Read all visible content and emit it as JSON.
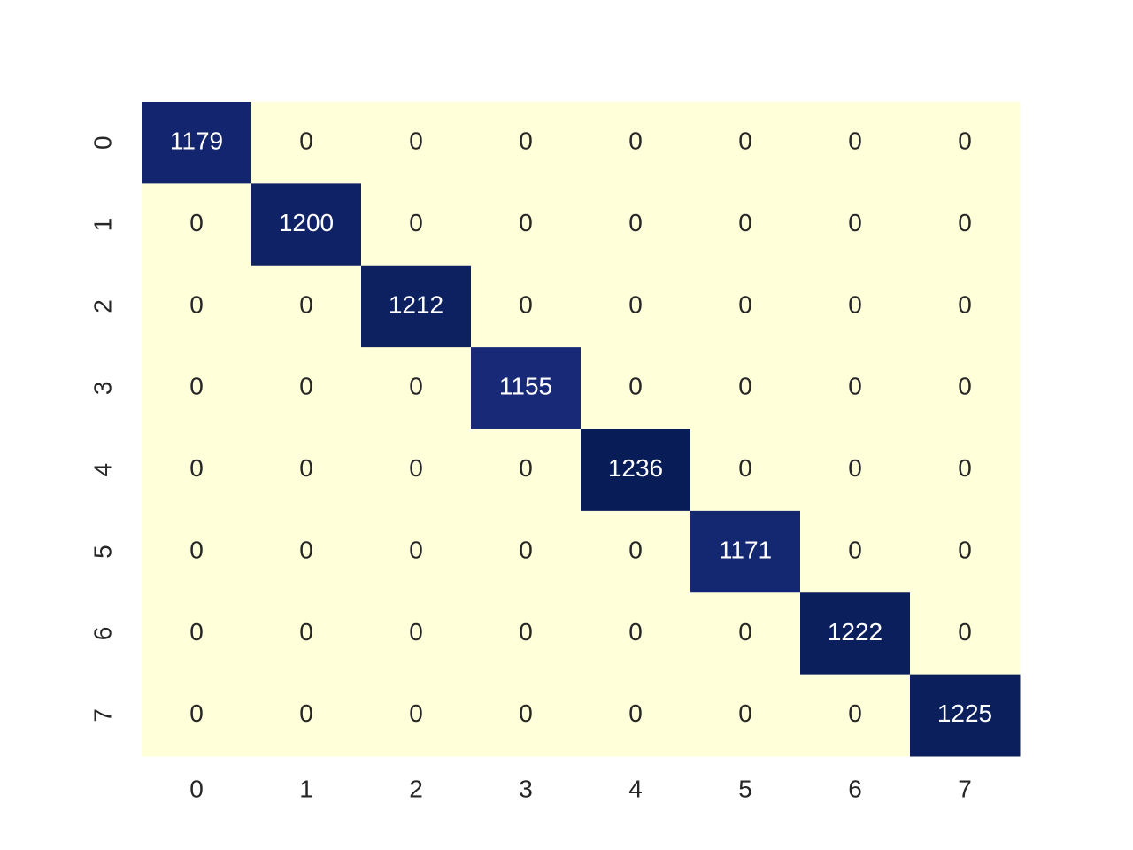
{
  "chart_data": {
    "type": "heatmap",
    "colormap": "YlGnBu",
    "x_categories": [
      "0",
      "1",
      "2",
      "3",
      "4",
      "5",
      "6",
      "7"
    ],
    "y_categories": [
      "0",
      "1",
      "2",
      "3",
      "4",
      "5",
      "6",
      "7"
    ],
    "values": [
      [
        1179,
        0,
        0,
        0,
        0,
        0,
        0,
        0
      ],
      [
        0,
        1200,
        0,
        0,
        0,
        0,
        0,
        0
      ],
      [
        0,
        0,
        1212,
        0,
        0,
        0,
        0,
        0
      ],
      [
        0,
        0,
        0,
        1155,
        0,
        0,
        0,
        0
      ],
      [
        0,
        0,
        0,
        0,
        1236,
        0,
        0,
        0
      ],
      [
        0,
        0,
        0,
        0,
        0,
        1171,
        0,
        0
      ],
      [
        0,
        0,
        0,
        0,
        0,
        0,
        1222,
        0
      ],
      [
        0,
        0,
        0,
        0,
        0,
        0,
        0,
        1225
      ]
    ]
  }
}
